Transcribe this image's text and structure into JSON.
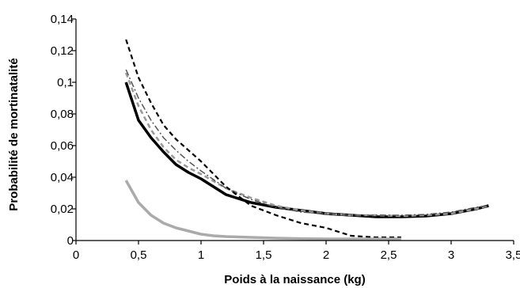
{
  "chart_data": {
    "type": "line",
    "title": "",
    "xlabel": "Poids à la naissance (kg)",
    "ylabel": "Probabilité de mortinatalité",
    "xlim": [
      0,
      3.5
    ],
    "ylim": [
      0,
      0.14
    ],
    "x_ticks": [
      0,
      0.5,
      1,
      1.5,
      2,
      2.5,
      3,
      3.5
    ],
    "x_tick_labels": [
      "0",
      "0,5",
      "1",
      "1,5",
      "2",
      "2,5",
      "3",
      "3,5"
    ],
    "y_ticks": [
      0,
      0.02,
      0.04,
      0.06,
      0.08,
      0.1,
      0.12,
      0.14
    ],
    "y_tick_labels": [
      "0",
      "0,02",
      "0,04",
      "0,06",
      "0,08",
      "0,1",
      "0,12",
      "0,14"
    ],
    "grid": false,
    "legend": "none",
    "series": [
      {
        "color": "#000000",
        "style": "solid",
        "width": 3.5,
        "x": [
          0.4,
          0.5,
          0.6,
          0.7,
          0.8,
          0.9,
          1.0,
          1.2,
          1.4,
          1.6,
          1.8,
          2.0,
          2.2,
          2.4,
          2.6,
          2.8,
          3.0,
          3.2,
          3.3
        ],
        "y": [
          0.1,
          0.076,
          0.065,
          0.056,
          0.048,
          0.043,
          0.039,
          0.029,
          0.024,
          0.021,
          0.019,
          0.017,
          0.016,
          0.015,
          0.015,
          0.0155,
          0.017,
          0.02,
          0.022
        ]
      },
      {
        "color": "#999999",
        "style": "dashed",
        "width": 2.5,
        "x": [
          0.4,
          0.5,
          0.6,
          0.7,
          0.8,
          0.9,
          1.0,
          1.2,
          1.4,
          1.6,
          1.8,
          2.0,
          2.2,
          2.4,
          2.6,
          2.8,
          3.0,
          3.2,
          3.3
        ],
        "y": [
          0.106,
          0.085,
          0.07,
          0.059,
          0.051,
          0.046,
          0.042,
          0.033,
          0.027,
          0.022,
          0.019,
          0.017,
          0.016,
          0.016,
          0.0155,
          0.016,
          0.017,
          0.02,
          0.022
        ]
      },
      {
        "color": "#555555",
        "style": "dashdot",
        "width": 1.5,
        "x": [
          0.4,
          0.5,
          0.6,
          0.7,
          0.8,
          0.9,
          1.0,
          1.2,
          1.4,
          1.6,
          1.8,
          2.0,
          2.2,
          2.4,
          2.6,
          2.8,
          3.0,
          3.2,
          3.3
        ],
        "y": [
          0.108,
          0.09,
          0.076,
          0.065,
          0.057,
          0.05,
          0.044,
          0.033,
          0.026,
          0.021,
          0.018,
          0.017,
          0.016,
          0.016,
          0.016,
          0.0165,
          0.018,
          0.021,
          0.022
        ]
      },
      {
        "color": "#000000",
        "style": "dashed",
        "width": 2.2,
        "x": [
          0.4,
          0.5,
          0.6,
          0.7,
          0.8,
          0.9,
          1.0,
          1.2,
          1.4,
          1.6,
          1.8,
          2.0,
          2.2,
          2.4,
          2.6
        ],
        "y": [
          0.127,
          0.103,
          0.087,
          0.073,
          0.064,
          0.057,
          0.05,
          0.034,
          0.022,
          0.016,
          0.011,
          0.008,
          0.003,
          0.002,
          0.002
        ]
      },
      {
        "color": "#aaaaaa",
        "style": "solid",
        "width": 3.5,
        "x": [
          0.4,
          0.5,
          0.6,
          0.7,
          0.8,
          0.9,
          1.0,
          1.1,
          1.2,
          1.4,
          1.6,
          1.8,
          2.0,
          2.2,
          2.4,
          2.6
        ],
        "y": [
          0.038,
          0.024,
          0.016,
          0.011,
          0.008,
          0.006,
          0.004,
          0.003,
          0.0025,
          0.002,
          0.0015,
          0.0012,
          0.001,
          0.001,
          0.001,
          0.001
        ]
      }
    ]
  }
}
